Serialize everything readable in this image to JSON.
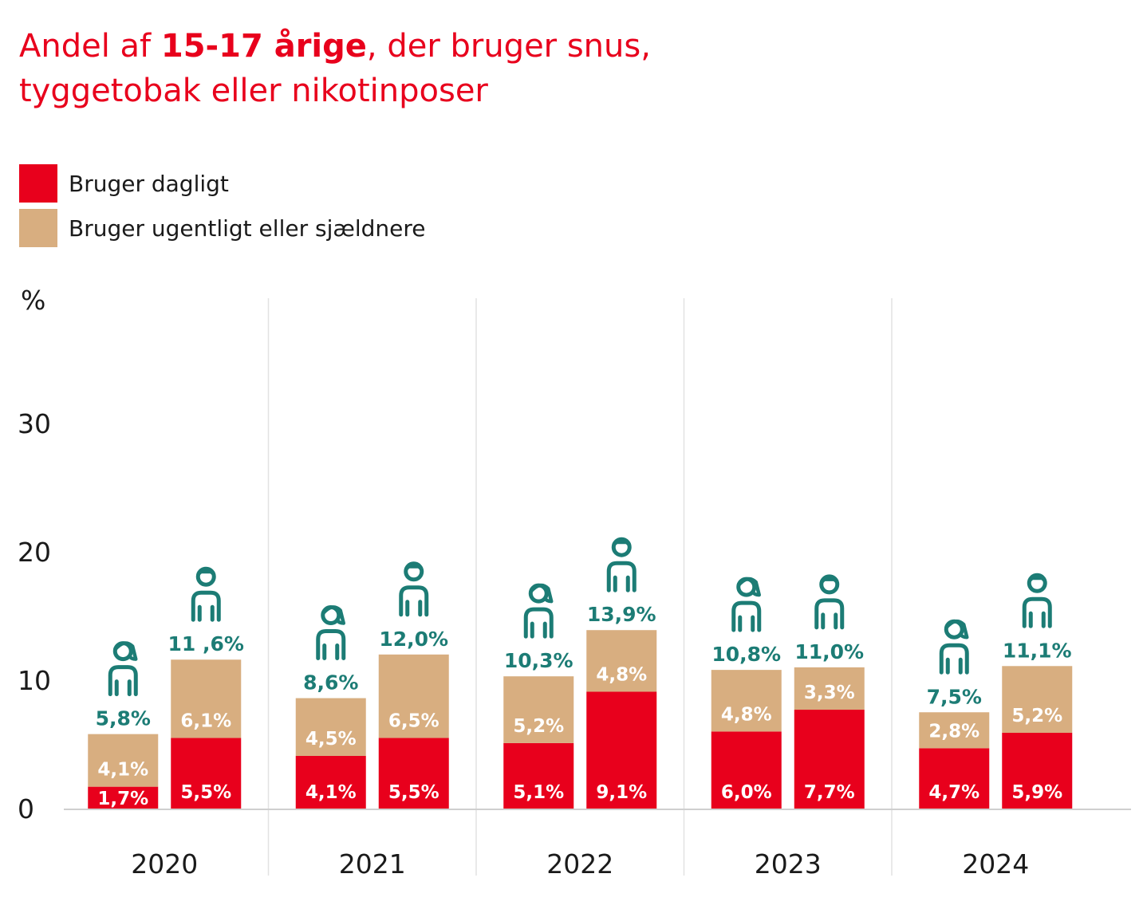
{
  "title": {
    "pre": "Andel af ",
    "bold": "15-17 årige",
    "post": ", der bruger snus,",
    "line2": "tyggetobak eller nikotinposer"
  },
  "legend": [
    {
      "label": "Bruger dagligt",
      "color": "#e8001c"
    },
    {
      "label": "Bruger ugentligt eller sjældnere",
      "color": "#d8ae80"
    }
  ],
  "chart_data": {
    "type": "bar",
    "stacked": true,
    "ylabel": "%",
    "ylim": [
      0,
      40
    ],
    "yticks": [
      0,
      10,
      20,
      30
    ],
    "categories": [
      "2020",
      "2021",
      "2022",
      "2023",
      "2024"
    ],
    "groups": [
      "female-icon",
      "male-icon"
    ],
    "colors": {
      "daily": "#e8001c",
      "weekly": "#d8ae80",
      "total": "#1c7c75",
      "icon": "#1c7c75"
    },
    "series": [
      {
        "name": "Bruger dagligt",
        "values": [
          [
            1.7,
            5.5
          ],
          [
            4.1,
            5.5
          ],
          [
            5.1,
            9.1
          ],
          [
            6.0,
            7.7
          ],
          [
            4.7,
            5.9
          ]
        ],
        "labels": [
          [
            "1,7%",
            "5,5%"
          ],
          [
            "4,1%",
            "5,5%"
          ],
          [
            "5,1%",
            "9,1%"
          ],
          [
            "6,0%",
            "7,7%"
          ],
          [
            "4,7%",
            "5,9%"
          ]
        ]
      },
      {
        "name": "Bruger ugentligt eller sjældnere",
        "values": [
          [
            4.1,
            6.1
          ],
          [
            4.5,
            6.5
          ],
          [
            5.2,
            4.8
          ],
          [
            4.8,
            3.3
          ],
          [
            2.8,
            5.2
          ]
        ],
        "labels": [
          [
            "4,1%",
            "6,1%"
          ],
          [
            "4,5%",
            "6,5%"
          ],
          [
            "5,2%",
            "4,8%"
          ],
          [
            "4,8%",
            "3,3%"
          ],
          [
            "2,8%",
            "5,2%"
          ]
        ]
      }
    ],
    "totals": [
      [
        5.8,
        11.6
      ],
      [
        8.6,
        12.0
      ],
      [
        10.3,
        13.9
      ],
      [
        10.8,
        11.0
      ],
      [
        7.5,
        11.1
      ]
    ],
    "total_labels": [
      [
        "5,8%",
        "11 ,6%"
      ],
      [
        "8,6%",
        "12,0%"
      ],
      [
        "10,3%",
        "13,9%"
      ],
      [
        "10,8%",
        "11,0%"
      ],
      [
        "7,5%",
        "11,1%"
      ]
    ]
  }
}
